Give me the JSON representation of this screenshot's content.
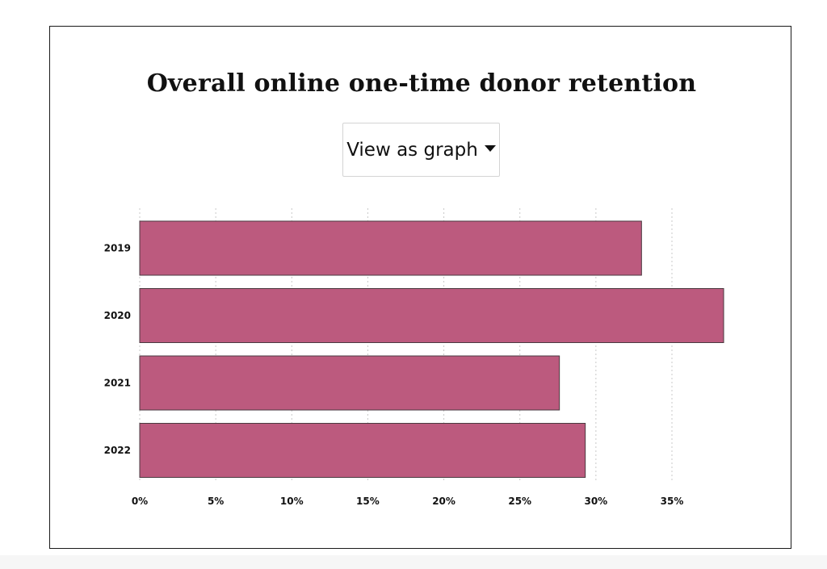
{
  "title": "Overall online one-time donor retention",
  "view_select": {
    "label": "View as graph",
    "icon": "caret-down-icon"
  },
  "chart_data": {
    "type": "bar",
    "orientation": "horizontal",
    "title": "Overall online one-time donor retention",
    "categories": [
      "2019",
      "2020",
      "2021",
      "2022"
    ],
    "values": [
      33.0,
      38.4,
      27.6,
      29.3
    ],
    "xlabel": "",
    "ylabel": "",
    "xlim": [
      0,
      40
    ],
    "x_ticks": [
      0,
      5,
      10,
      15,
      20,
      25,
      30,
      35
    ],
    "x_tick_labels": [
      "0%",
      "5%",
      "10%",
      "15%",
      "20%",
      "25%",
      "30%",
      "35%"
    ],
    "grid": "vertical dotted",
    "bar_color": "#bc5a7e",
    "bar_stroke": "#4a3a40"
  }
}
